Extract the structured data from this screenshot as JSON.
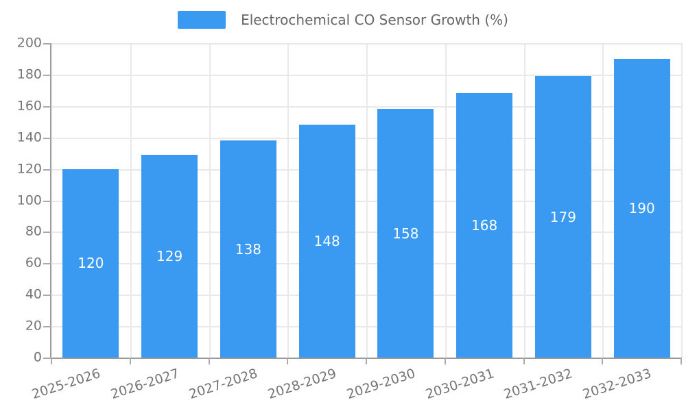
{
  "legend": {
    "label": "Electrochemical CO Sensor Growth (%)"
  },
  "chart_data": {
    "type": "bar",
    "title": "Electrochemical CO Sensor Growth (%)",
    "categories": [
      "2025-2026",
      "2026-2027",
      "2027-2028",
      "2028-2029",
      "2029-2030",
      "2030-2031",
      "2031-2032",
      "2032-2033"
    ],
    "values": [
      120,
      129,
      138,
      148,
      158,
      168,
      179,
      190
    ],
    "xlabel": "",
    "ylabel": "",
    "ylim": [
      0,
      200
    ],
    "ytick_interval": 20,
    "ytick_labels": [
      "0",
      "20",
      "40",
      "60",
      "80",
      "100",
      "120",
      "140",
      "160",
      "180",
      "200"
    ],
    "grid": true,
    "legend_position": "top-center",
    "value_labels_inside_bars": true,
    "xlabel_rotation_deg": -18
  },
  "colors": {
    "bar": "#3A99F0",
    "value_label": "#ffffff",
    "grid": "#e9e9e9",
    "axis": "#9a9a9a",
    "tick": "#aaaaaa",
    "tick_text": "#757575",
    "legend_text": "#666666",
    "background": "#ffffff"
  }
}
